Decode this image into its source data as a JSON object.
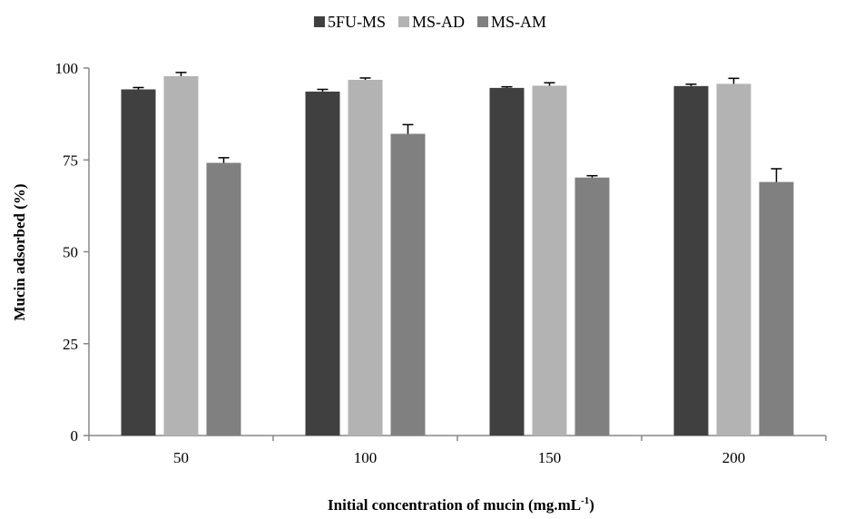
{
  "chart_data": {
    "type": "bar",
    "categories": [
      "50",
      "100",
      "150",
      "200"
    ],
    "series": [
      {
        "name": "5FU-MS",
        "color": "#404040",
        "values": [
          94.2,
          93.6,
          94.6,
          95.1
        ],
        "errors": [
          0.5,
          0.6,
          0.3,
          0.5
        ]
      },
      {
        "name": "MS-AD",
        "color": "#b3b3b3",
        "values": [
          97.8,
          96.8,
          95.2,
          95.7
        ],
        "errors": [
          1.0,
          0.5,
          0.8,
          1.5
        ]
      },
      {
        "name": "MS-AM",
        "color": "#808080",
        "values": [
          74.2,
          82.1,
          70.2,
          69.0
        ],
        "errors": [
          1.4,
          2.5,
          0.5,
          3.6
        ]
      }
    ],
    "yticks": [
      "0",
      "25",
      "50",
      "75",
      "100"
    ],
    "ylim": [
      0,
      100
    ],
    "ylabel": "Mucin adsorbed  (%)",
    "xlabel_main": "Initial concentration  of mucin (mg.mL",
    "xlabel_sup": "-1",
    "xlabel_close": ")",
    "legend_position": "top-center",
    "grid": false
  }
}
